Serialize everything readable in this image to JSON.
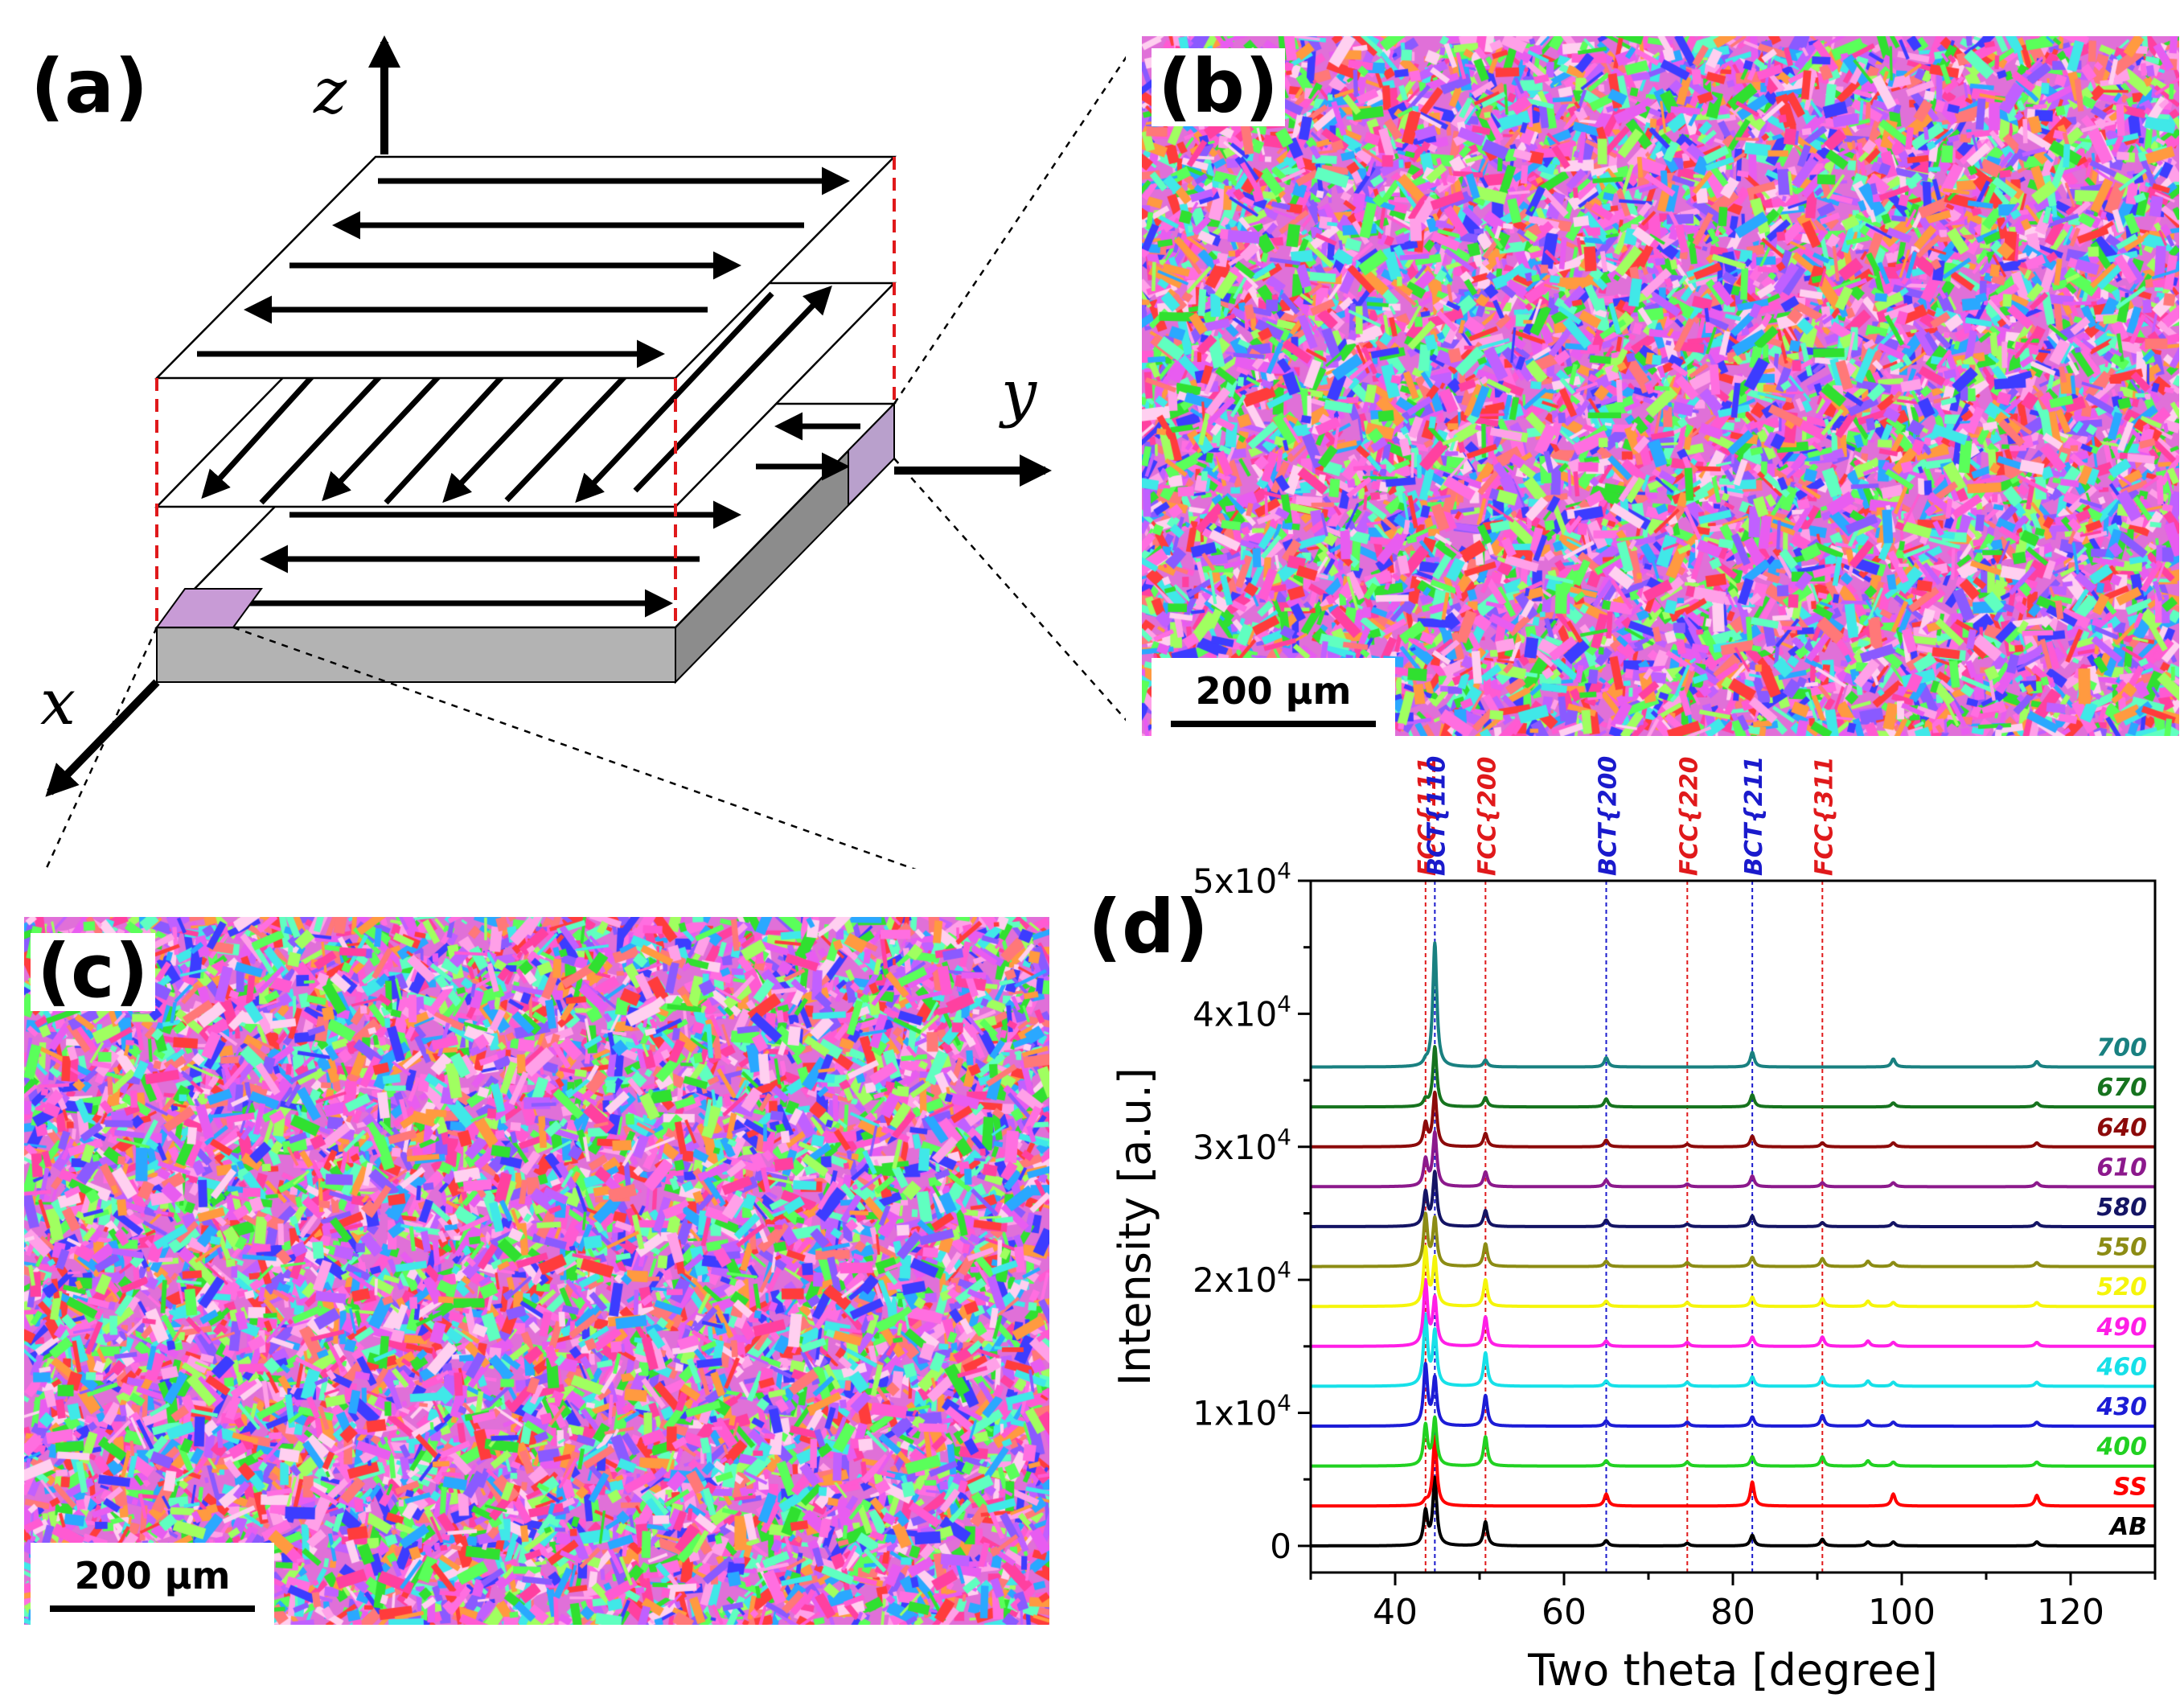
{
  "figure": {
    "panel_a": {
      "label": "(a)",
      "axes": {
        "z": "z",
        "y": "y",
        "x": "x"
      }
    },
    "panel_b": {
      "label": "(b)",
      "scale_bar": "200 µm"
    },
    "panel_c": {
      "label": "(c)",
      "scale_bar": "200 µm"
    },
    "panel_d": {
      "label": "(d)"
    }
  },
  "chart_data": {
    "type": "line",
    "title": "",
    "xlabel": "Two theta [degree]",
    "ylabel": "Intensity [a.u.]",
    "xlim": [
      30,
      130
    ],
    "ylim": [
      -2000,
      50000
    ],
    "x_ticks": [
      40,
      60,
      80,
      100,
      120
    ],
    "y_ticks": [
      {
        "value": 0,
        "label": "0"
      },
      {
        "value": 10000,
        "label": "1x10",
        "exp": "4"
      },
      {
        "value": 20000,
        "label": "2x10",
        "exp": "4"
      },
      {
        "value": 30000,
        "label": "3x10",
        "exp": "4"
      },
      {
        "value": 40000,
        "label": "4x10",
        "exp": "4"
      },
      {
        "value": 50000,
        "label": "5x10",
        "exp": "4"
      }
    ],
    "grid": false,
    "legend": "inline labels at right end of each trace",
    "reference_lines": [
      {
        "label": "FCC{111}",
        "x": 43.6,
        "color": "#e0191b"
      },
      {
        "label": "BCT{110}",
        "x": 44.7,
        "color": "#1a1acc"
      },
      {
        "label": "FCC{200}",
        "x": 50.7,
        "color": "#e0191b"
      },
      {
        "label": "BCT{200}",
        "x": 65.0,
        "color": "#1a1acc"
      },
      {
        "label": "FCC{220}",
        "x": 74.6,
        "color": "#e0191b"
      },
      {
        "label": "BCT{211}",
        "x": 82.3,
        "color": "#1a1acc"
      },
      {
        "label": "FCC{311}",
        "x": 90.6,
        "color": "#e0191b"
      }
    ],
    "series": [
      {
        "name": "AB",
        "color": "#000000",
        "baseline": 0,
        "peaks": [
          [
            43.6,
            2500
          ],
          [
            44.7,
            5000
          ],
          [
            50.7,
            1800
          ],
          [
            65.0,
            400
          ],
          [
            74.6,
            200
          ],
          [
            82.3,
            800
          ],
          [
            90.6,
            500
          ],
          [
            96.0,
            300
          ],
          [
            99.0,
            300
          ],
          [
            116.0,
            300
          ]
        ]
      },
      {
        "name": "SS",
        "color": "#ff0000",
        "baseline": 3000,
        "peaks": [
          [
            43.6,
            300
          ],
          [
            44.7,
            5200
          ],
          [
            65.0,
            900
          ],
          [
            82.3,
            1800
          ],
          [
            99.0,
            900
          ],
          [
            116.0,
            800
          ]
        ]
      },
      {
        "name": "400",
        "color": "#21d121",
        "baseline": 6000,
        "peaks": [
          [
            43.6,
            3000
          ],
          [
            44.7,
            3500
          ],
          [
            50.7,
            2200
          ],
          [
            65.0,
            400
          ],
          [
            74.6,
            300
          ],
          [
            82.3,
            700
          ],
          [
            90.6,
            700
          ],
          [
            96.0,
            400
          ],
          [
            99.0,
            300
          ],
          [
            116.0,
            300
          ]
        ]
      },
      {
        "name": "430",
        "color": "#1c1cd6",
        "baseline": 9000,
        "peaks": [
          [
            43.6,
            4500
          ],
          [
            44.7,
            3500
          ],
          [
            50.7,
            2300
          ],
          [
            65.0,
            400
          ],
          [
            74.6,
            300
          ],
          [
            82.3,
            700
          ],
          [
            90.6,
            800
          ],
          [
            96.0,
            400
          ],
          [
            99.0,
            300
          ],
          [
            116.0,
            300
          ]
        ]
      },
      {
        "name": "460",
        "color": "#16e0e8",
        "baseline": 12000,
        "peaks": [
          [
            43.6,
            5200
          ],
          [
            44.7,
            4000
          ],
          [
            50.7,
            2500
          ],
          [
            65.0,
            400
          ],
          [
            74.6,
            300
          ],
          [
            82.3,
            700
          ],
          [
            90.6,
            700
          ],
          [
            96.0,
            400
          ],
          [
            99.0,
            300
          ],
          [
            116.0,
            300
          ]
        ]
      },
      {
        "name": "490",
        "color": "#ff1ee6",
        "baseline": 15000,
        "peaks": [
          [
            43.6,
            4800
          ],
          [
            44.7,
            3500
          ],
          [
            50.7,
            2200
          ],
          [
            65.0,
            400
          ],
          [
            74.6,
            300
          ],
          [
            82.3,
            700
          ],
          [
            90.6,
            700
          ],
          [
            96.0,
            400
          ],
          [
            99.0,
            300
          ],
          [
            116.0,
            300
          ]
        ]
      },
      {
        "name": "520",
        "color": "#f5f50a",
        "baseline": 18000,
        "peaks": [
          [
            43.6,
            4300
          ],
          [
            44.7,
            3500
          ],
          [
            50.7,
            2000
          ],
          [
            65.0,
            400
          ],
          [
            74.6,
            300
          ],
          [
            82.3,
            700
          ],
          [
            90.6,
            600
          ],
          [
            96.0,
            400
          ],
          [
            99.0,
            300
          ],
          [
            116.0,
            300
          ]
        ]
      },
      {
        "name": "550",
        "color": "#8c8c14",
        "baseline": 21000,
        "peaks": [
          [
            43.6,
            3800
          ],
          [
            44.7,
            3500
          ],
          [
            50.7,
            1700
          ],
          [
            65.0,
            400
          ],
          [
            74.6,
            300
          ],
          [
            82.3,
            700
          ],
          [
            90.6,
            600
          ],
          [
            96.0,
            400
          ],
          [
            99.0,
            300
          ],
          [
            116.0,
            300
          ]
        ]
      },
      {
        "name": "580",
        "color": "#141464",
        "baseline": 24000,
        "peaks": [
          [
            43.6,
            2500
          ],
          [
            44.7,
            4000
          ],
          [
            50.7,
            1200
          ],
          [
            65.0,
            500
          ],
          [
            74.6,
            200
          ],
          [
            82.3,
            800
          ],
          [
            90.6,
            300
          ],
          [
            99.0,
            300
          ],
          [
            116.0,
            300
          ]
        ]
      },
      {
        "name": "610",
        "color": "#8c198c",
        "baseline": 27000,
        "peaks": [
          [
            43.6,
            2000
          ],
          [
            44.7,
            4000
          ],
          [
            50.7,
            1100
          ],
          [
            65.0,
            500
          ],
          [
            74.6,
            200
          ],
          [
            82.3,
            800
          ],
          [
            90.6,
            300
          ],
          [
            99.0,
            300
          ],
          [
            116.0,
            300
          ]
        ]
      },
      {
        "name": "640",
        "color": "#8c0a0a",
        "baseline": 30000,
        "peaks": [
          [
            43.6,
            1700
          ],
          [
            44.7,
            4000
          ],
          [
            50.7,
            1000
          ],
          [
            65.0,
            500
          ],
          [
            74.6,
            200
          ],
          [
            82.3,
            800
          ],
          [
            90.6,
            300
          ],
          [
            99.0,
            300
          ],
          [
            116.0,
            300
          ]
        ]
      },
      {
        "name": "670",
        "color": "#16731e",
        "baseline": 33000,
        "peaks": [
          [
            43.6,
            500
          ],
          [
            44.7,
            4500
          ],
          [
            50.7,
            700
          ],
          [
            65.0,
            600
          ],
          [
            82.3,
            900
          ],
          [
            99.0,
            300
          ],
          [
            116.0,
            300
          ]
        ]
      },
      {
        "name": "700",
        "color": "#198080",
        "baseline": 36000,
        "peaks": [
          [
            43.6,
            300
          ],
          [
            44.7,
            9300
          ],
          [
            50.7,
            500
          ],
          [
            65.0,
            700
          ],
          [
            82.3,
            1100
          ],
          [
            99.0,
            600
          ],
          [
            116.0,
            400
          ]
        ]
      }
    ]
  }
}
